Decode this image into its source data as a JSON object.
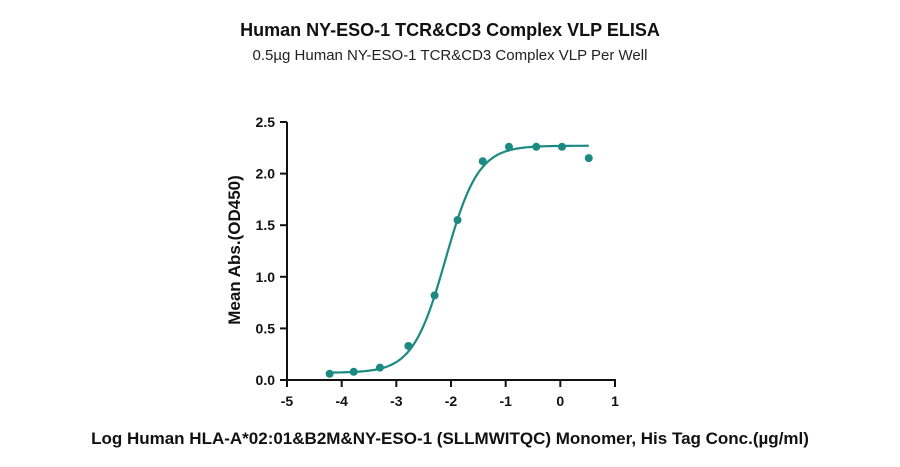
{
  "chart_data": {
    "type": "scatter",
    "title": "Human NY-ESO-1 TCR&CD3 Complex VLP ELISA",
    "subtitle": "0.5µg Human NY-ESO-1 TCR&CD3 Complex VLP Per Well",
    "xlabel": "Log Human HLA-A*02:01&B2M&NY-ESO-1 (SLLMWITQC) Monomer, His Tag Conc.(µg/ml)",
    "ylabel": "Mean Abs.(OD450)",
    "xlim": [
      -5,
      1
    ],
    "ylim": [
      0,
      2.5
    ],
    "x_ticks": [
      -5,
      -4,
      -3,
      -2,
      -1,
      0,
      1
    ],
    "y_ticks": [
      0.0,
      0.5,
      1.0,
      1.5,
      2.0,
      2.5
    ],
    "y_tick_labels": [
      "0.0",
      "0.5",
      "1.0",
      "1.5",
      "2.0",
      "2.5"
    ],
    "color": "#1a8a82",
    "grid": false,
    "points": {
      "x": [
        -4.22,
        -3.78,
        -3.3,
        -2.78,
        -2.3,
        -1.88,
        -1.42,
        -0.94,
        -0.44,
        0.03,
        0.52
      ],
      "y": [
        0.06,
        0.08,
        0.12,
        0.33,
        0.82,
        1.55,
        2.12,
        2.26,
        2.26,
        2.26,
        2.15
      ]
    },
    "fit": {
      "model": "4PL",
      "bottom": 0.07,
      "top": 2.27,
      "logEC50": -2.1,
      "hill": 1.45
    }
  }
}
